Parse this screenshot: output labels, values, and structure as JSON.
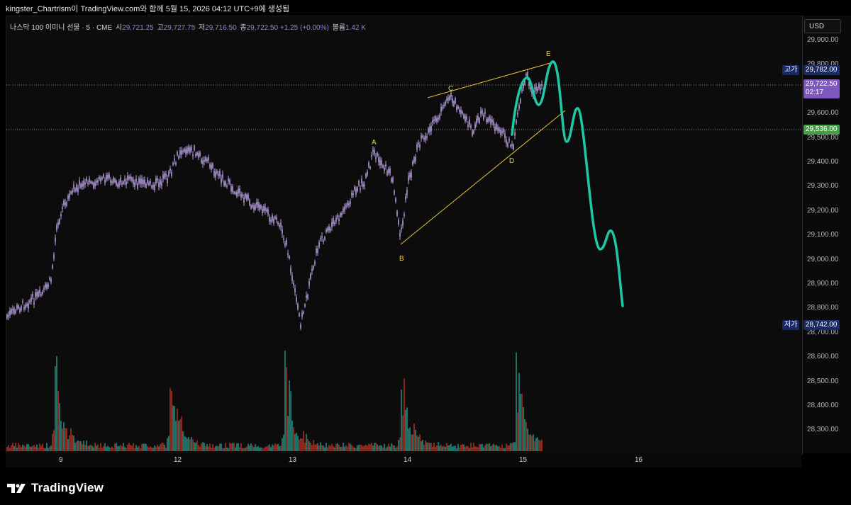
{
  "header": {
    "title": "kingster_Chartrism이 TradingView.com와 함께 5월 15, 2026 04:12 UTC+9에 생성됨"
  },
  "legend": {
    "symbol": "나스닥 100 이미니 선물 · 5 · CME",
    "open_label": "시",
    "open": "29,721.25",
    "high_label": "고",
    "high": "29,727.75",
    "low_label": "저",
    "low": "29,716.50",
    "close_label": "종",
    "close": "29,722.50",
    "change": "+1.25 (+0.00%)",
    "volume_label": "볼륨",
    "volume": "1.42 K"
  },
  "price_axis": {
    "currency_button": "USD",
    "ticks": [
      "29,900.00",
      "29,800.00",
      "29,700.00",
      "29,600.00",
      "29,500.00",
      "29,400.00",
      "29,300.00",
      "29,200.00",
      "29,100.00",
      "29,000.00",
      "28,900.00",
      "28,800.00",
      "28,700.00",
      "28,600.00",
      "28,500.00",
      "28,400.00",
      "28,300.00"
    ],
    "high_tag_label": "고가",
    "high_tag_value": "29,782.00",
    "last_price": "29,722.50",
    "countdown": "02:17",
    "level_tag": "29,536.00",
    "low_tag_label": "저가",
    "low_tag_value": "28,742.00"
  },
  "time_axis": {
    "ticks": [
      "9",
      "12",
      "13",
      "14",
      "15",
      "16"
    ]
  },
  "wave_labels": [
    "A",
    "B",
    "C",
    "D",
    "E"
  ],
  "colors": {
    "candle": "#b39ddb",
    "projection": "#1ec8a5",
    "trendline": "#e8c23a",
    "high_tag": "#1a2a66",
    "last_tag": "#7e57c2",
    "level_tag": "#43a047",
    "low_tag": "#1a2a66",
    "vol_up": "#2a9d8f",
    "vol_down": "#c0392b"
  },
  "brand": {
    "name": "TradingView",
    "logo": "tradingview-logo-icon"
  }
}
